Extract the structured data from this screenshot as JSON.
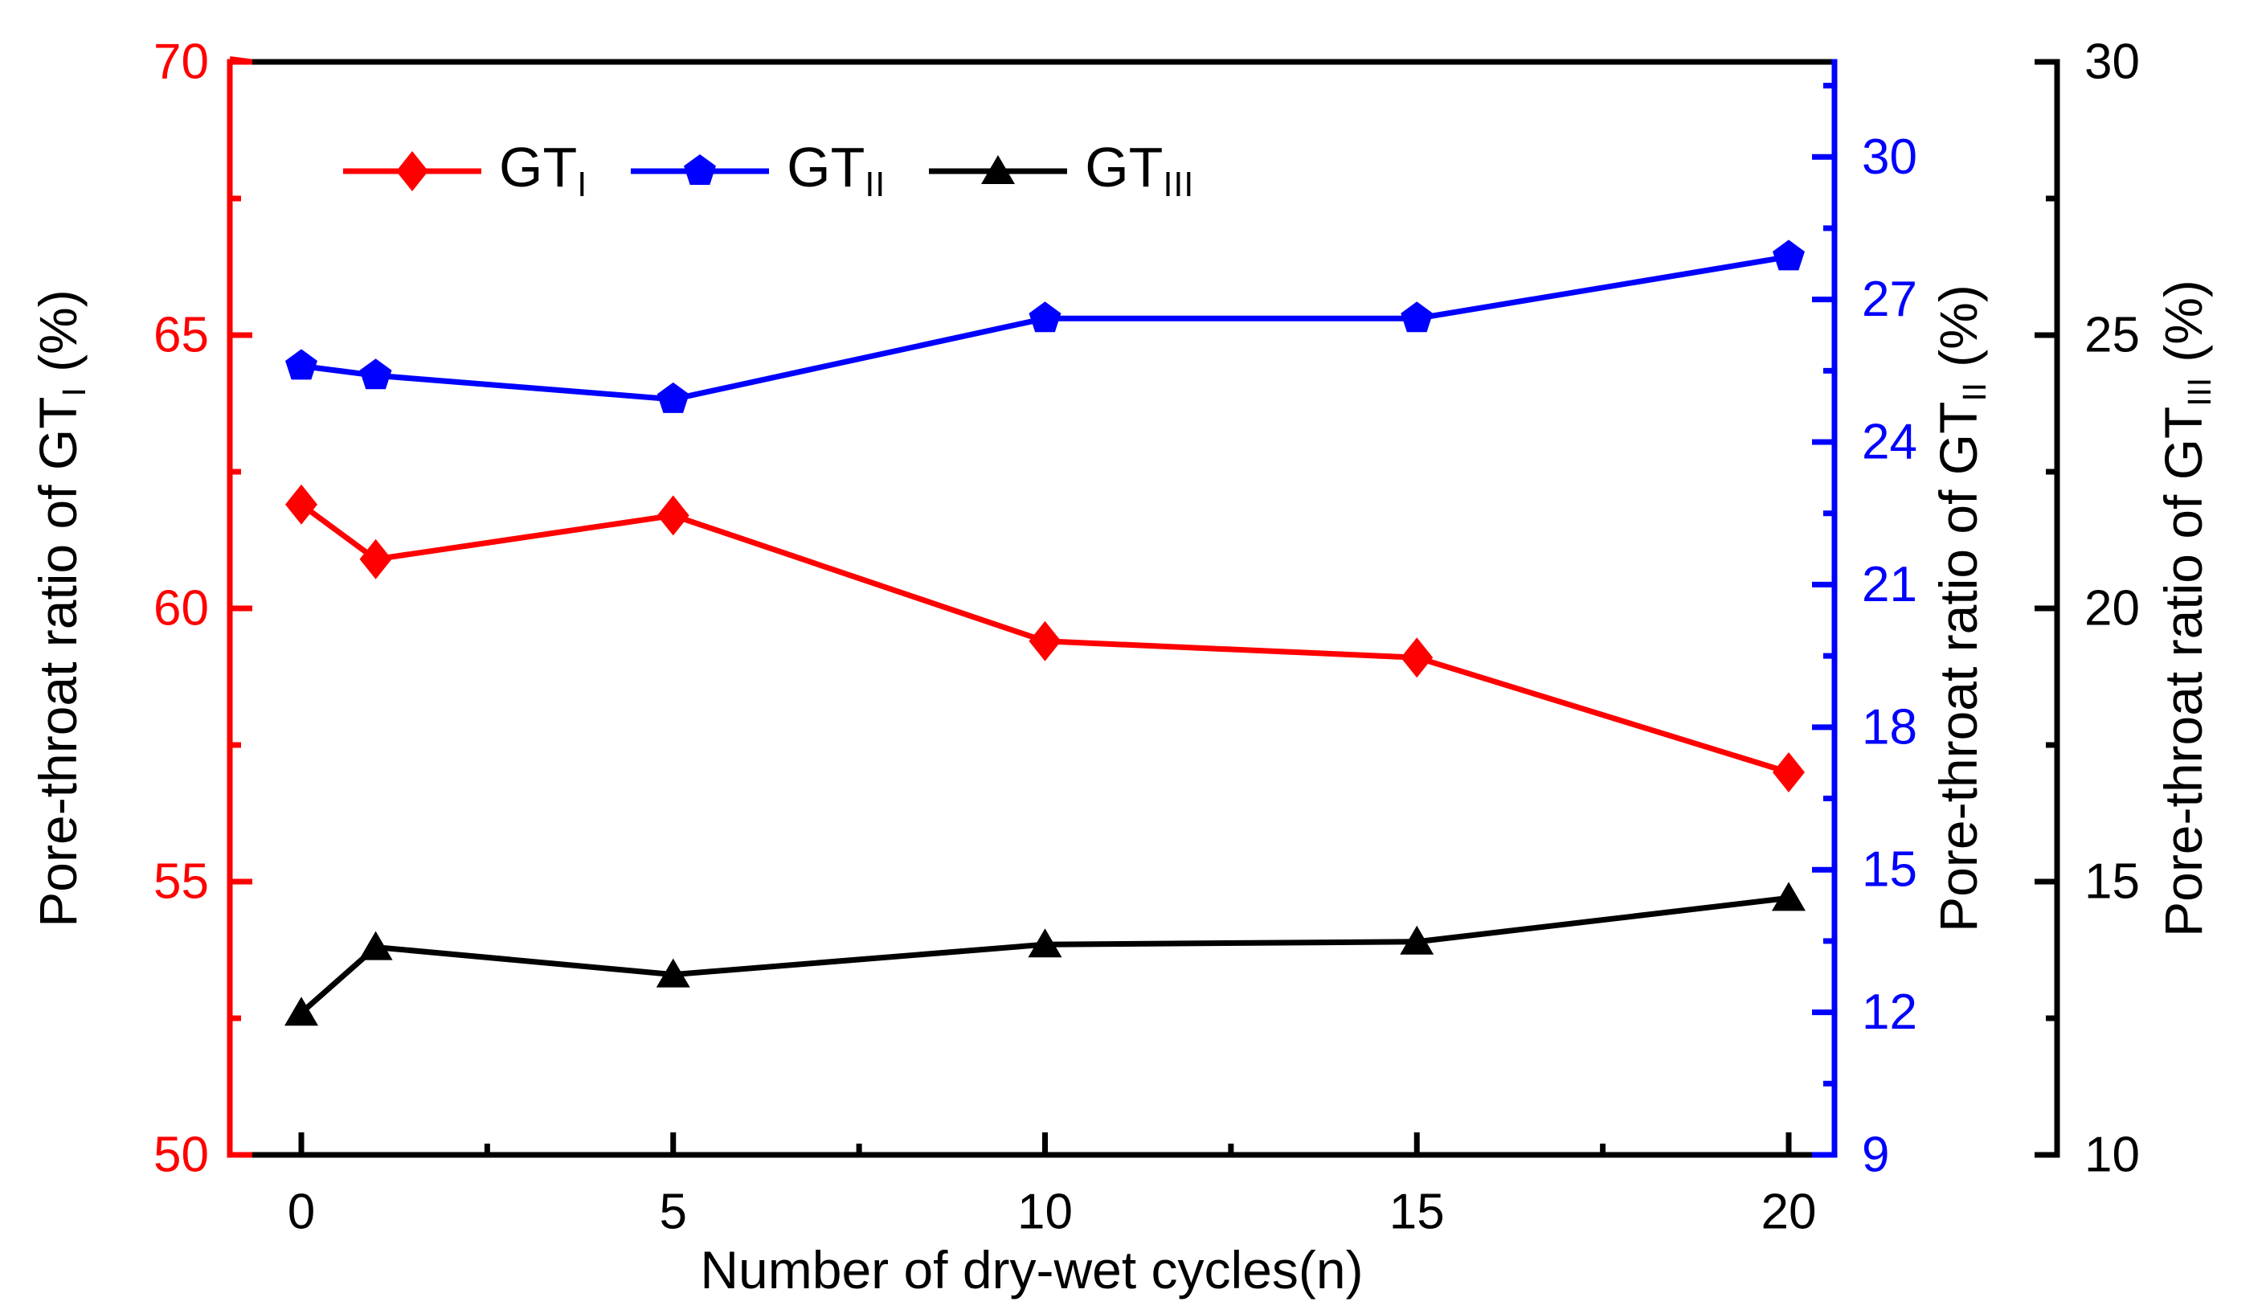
{
  "chart_data": {
    "type": "line",
    "title": "",
    "xlabel": "Number of dry-wet cycles(n)",
    "x": [
      0,
      1,
      5,
      10,
      15,
      20
    ],
    "x_ticks": [
      0,
      5,
      10,
      15,
      20
    ],
    "x_minor_ticks": [
      2.5,
      7.5,
      12.5,
      17.5
    ],
    "xlim": [
      -1,
      20.7
    ],
    "grid": "off",
    "legend_position": "top-left-inside",
    "series": [
      {
        "name": "GT_I",
        "legend_pre": "GT",
        "legend_sub": "I",
        "axis": "left",
        "color": "#ff0000",
        "marker": "diamond",
        "values": [
          61.9,
          60.9,
          61.7,
          59.4,
          59.1,
          57.0
        ]
      },
      {
        "name": "GT_II",
        "legend_pre": "GT",
        "legend_sub": "II",
        "axis": "right1",
        "color": "#0000ff",
        "marker": "pentagon",
        "values": [
          25.6,
          25.4,
          24.9,
          26.6,
          26.6,
          27.9
        ]
      },
      {
        "name": "GT_III",
        "legend_pre": "GT",
        "legend_sub": "III",
        "axis": "right2",
        "color": "#000000",
        "marker": "triangle",
        "values": [
          12.6,
          13.8,
          13.3,
          13.85,
          13.9,
          14.7
        ]
      }
    ],
    "axes": {
      "left": {
        "title_pre": "Pore-throat ratio of GT",
        "title_sub": "I",
        "title_post": " (%)",
        "color": "#ff0000",
        "ticks": [
          50,
          55,
          60,
          65,
          70
        ],
        "minor_ticks": [
          52.5,
          57.5,
          62.5,
          67.5
        ],
        "ylim": [
          50,
          70
        ]
      },
      "right1": {
        "title_pre": "Pore-throat ratio of GT",
        "title_sub": "II",
        "title_post": " (%)",
        "color": "#0000ff",
        "ticks": [
          9,
          12,
          15,
          18,
          21,
          24,
          27,
          30
        ],
        "minor_ticks": [
          10.5,
          13.5,
          16.5,
          19.5,
          22.5,
          25.5,
          28.5,
          31.5
        ],
        "ylim": [
          9,
          32
        ]
      },
      "right2": {
        "title_pre": "Pore-throat ratio of GT",
        "title_sub": "III",
        "title_post": " (%)",
        "color": "#000000",
        "ticks": [
          10,
          15,
          20,
          25,
          30
        ],
        "minor_ticks": [
          12.5,
          17.5,
          22.5,
          27.5
        ],
        "ylim": [
          10,
          30
        ]
      }
    }
  }
}
